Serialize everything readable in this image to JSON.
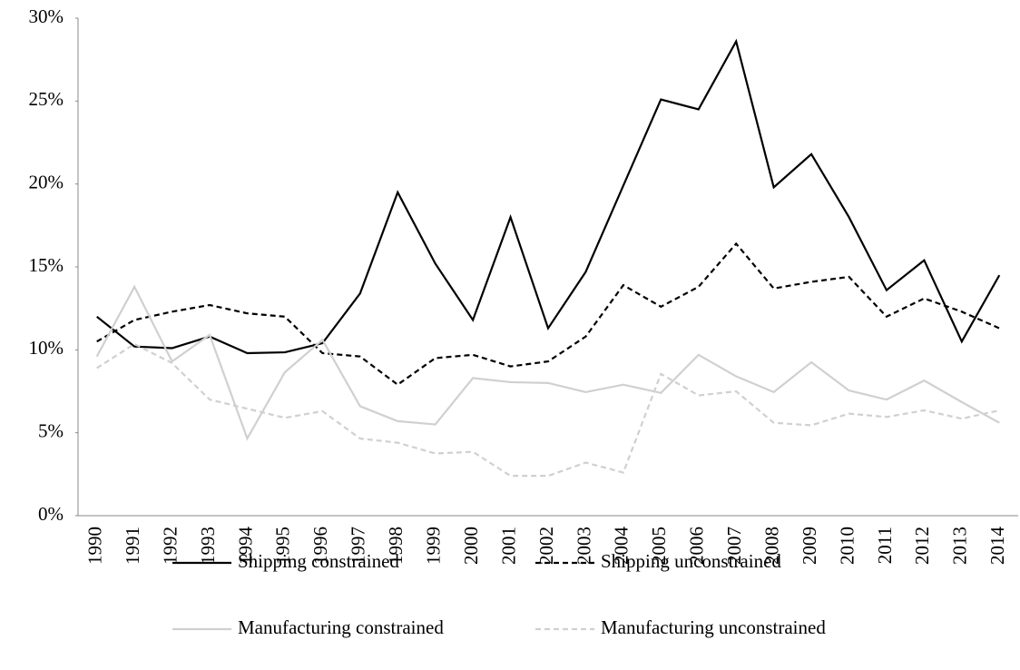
{
  "chart_data": {
    "type": "line",
    "categories": [
      "1990",
      "1991",
      "1992",
      "1993",
      "1994",
      "1995",
      "1996",
      "1997",
      "1998",
      "1999",
      "2000",
      "2001",
      "2002",
      "2003",
      "2004",
      "2005",
      "2006",
      "2007",
      "2008",
      "2009",
      "2010",
      "2011",
      "2012",
      "2013",
      "2014"
    ],
    "ylim": [
      0,
      30
    ],
    "yticks": [
      {
        "value": 0,
        "label": "0%"
      },
      {
        "value": 5,
        "label": "5%"
      },
      {
        "value": 10,
        "label": "10%"
      },
      {
        "value": 15,
        "label": "15%"
      },
      {
        "value": 20,
        "label": "20%"
      },
      {
        "value": 25,
        "label": "25%"
      },
      {
        "value": 30,
        "label": "30%"
      }
    ],
    "grid": false,
    "legend": "bottom",
    "series": [
      {
        "name": "Shipping constrained",
        "color": "#000000",
        "style": "solid",
        "values": [
          12.0,
          10.2,
          10.1,
          10.8,
          9.8,
          9.85,
          10.4,
          13.4,
          19.5,
          15.2,
          11.8,
          18.0,
          11.3,
          14.7,
          19.9,
          25.1,
          24.5,
          28.6,
          19.8,
          21.8,
          18.0,
          13.6,
          15.4,
          10.5,
          14.5
        ]
      },
      {
        "name": "Shipping unconstrained",
        "color": "#000000",
        "style": "dashed",
        "values": [
          10.5,
          11.8,
          12.3,
          12.7,
          12.2,
          12.0,
          9.8,
          9.6,
          7.9,
          9.5,
          9.7,
          9.0,
          9.3,
          10.8,
          13.9,
          12.6,
          13.8,
          16.4,
          13.7,
          14.1,
          14.4,
          12.0,
          13.1,
          12.3,
          11.3
        ]
      },
      {
        "name": "Manufacturing constrained",
        "color": "#d0d0d0",
        "style": "solid",
        "values": [
          9.6,
          13.8,
          9.3,
          10.9,
          4.65,
          8.65,
          10.6,
          6.6,
          5.7,
          5.5,
          8.3,
          8.05,
          8.0,
          7.45,
          7.9,
          7.4,
          9.7,
          8.4,
          7.45,
          9.25,
          7.55,
          7.0,
          8.15,
          6.85,
          5.6
        ]
      },
      {
        "name": "Manufacturing unconstrained",
        "color": "#d0d0d0",
        "style": "dashed",
        "values": [
          8.9,
          10.35,
          9.2,
          7.0,
          6.45,
          5.9,
          6.3,
          4.65,
          4.4,
          3.75,
          3.85,
          2.4,
          2.4,
          3.2,
          2.6,
          8.55,
          7.25,
          7.5,
          5.6,
          5.45,
          6.15,
          5.95,
          6.35,
          5.85,
          6.35
        ]
      }
    ]
  }
}
